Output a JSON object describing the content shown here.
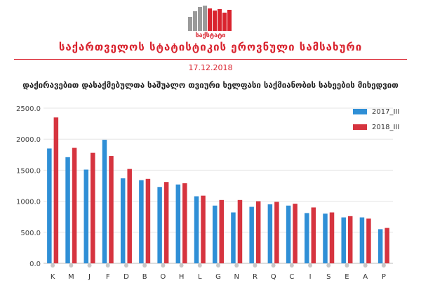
{
  "header": {
    "logo_text": "საქსტატი",
    "organization": "საქართველოს სტატისტიკის ეროვნული სამსახური",
    "date": "17.12.2018"
  },
  "colors": {
    "brand_red": "#d9232e",
    "series_2017": "#2f8fd6",
    "series_2018": "#d6343f"
  },
  "chart_data": {
    "type": "bar",
    "title": "დაქირავებით დასაქმებულთა საშუალო თვიური ხელფასი საქმიანობის სახეების მიხედვით",
    "categories": [
      "K",
      "M",
      "J",
      "F",
      "D",
      "B",
      "O",
      "H",
      "L",
      "G",
      "N",
      "R",
      "Q",
      "C",
      "I",
      "S",
      "E",
      "A",
      "P"
    ],
    "series": [
      {
        "name": "2017_III",
        "values": [
          1850,
          1710,
          1510,
          1990,
          1370,
          1340,
          1230,
          1270,
          1080,
          930,
          820,
          910,
          950,
          930,
          810,
          800,
          740,
          740,
          550
        ]
      },
      {
        "name": "2018_III",
        "values": [
          2350,
          1860,
          1780,
          1730,
          1520,
          1360,
          1310,
          1290,
          1090,
          1020,
          1020,
          1000,
          990,
          960,
          900,
          820,
          760,
          720,
          570
        ]
      }
    ],
    "yticks": [
      "0.0",
      "500.0",
      "1000.0",
      "1500.0",
      "2000.0",
      "2500.0"
    ],
    "ylim": [
      0,
      2500
    ],
    "grid": true,
    "legend_position": "top-right"
  }
}
